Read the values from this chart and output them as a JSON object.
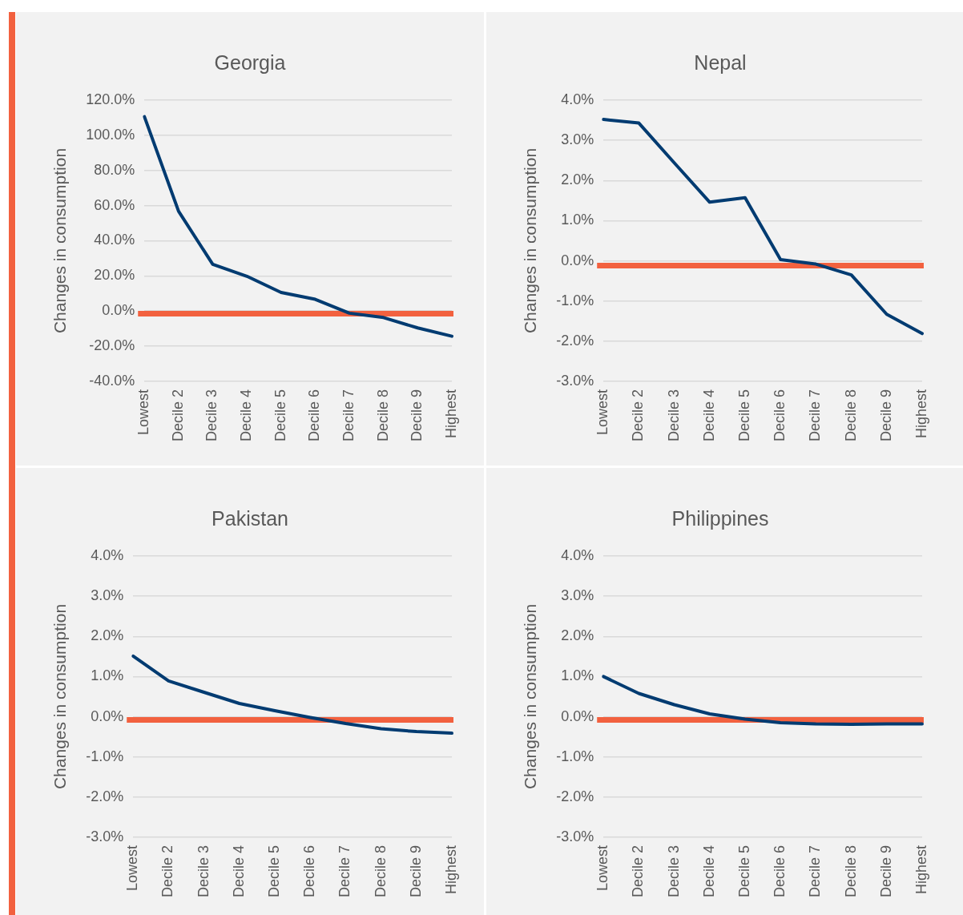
{
  "chart_data": [
    {
      "type": "line",
      "title": "Georgia",
      "ylabel": "Changes in consumption",
      "categories": [
        "Lowest",
        "Decile 2",
        "Decile 3",
        "Decile 4",
        "Decile 5",
        "Decile 6",
        "Decile 7",
        "Decile 8",
        "Decile 9",
        "Highest"
      ],
      "series": [
        {
          "color": "#003b71",
          "values": [
            110.6,
            56.8,
            26.6,
            19.8,
            10.6,
            6.7,
            -1.2,
            -3.7,
            -9.6,
            -14.3
          ]
        }
      ],
      "ylim": [
        -40,
        120
      ],
      "yticks": [
        {
          "value": -40,
          "label": "-40.0%"
        },
        {
          "value": -20,
          "label": "-20.0%"
        },
        {
          "value": 0,
          "label": "0.0%"
        },
        {
          "value": 20,
          "label": "20.0%"
        },
        {
          "value": 40,
          "label": "40.0%"
        },
        {
          "value": 60,
          "label": "60.0%"
        },
        {
          "value": 80,
          "label": "80.0%"
        },
        {
          "value": 100,
          "label": "100.0%"
        },
        {
          "value": 120,
          "label": "120.0%"
        }
      ],
      "grid": "y",
      "marker": "none",
      "ref_lines": [
        {
          "axis": "y",
          "value": -1.5,
          "color": "#f2613f"
        }
      ]
    },
    {
      "type": "line",
      "title": "Nepal",
      "ylabel": "Changes in consumption",
      "categories": [
        "Lowest",
        "Decile 2",
        "Decile 3",
        "Decile 4",
        "Decile 5",
        "Decile 6",
        "Decile 7",
        "Decile 8",
        "Decile 9",
        "Highest"
      ],
      "series": [
        {
          "color": "#003b71",
          "values": [
            3.52,
            3.43,
            2.44,
            1.46,
            1.57,
            0.03,
            -0.08,
            -0.35,
            -1.33,
            -1.81
          ]
        }
      ],
      "ylim": [
        -3,
        4
      ],
      "yticks": [
        {
          "value": -3,
          "label": "-3.0%"
        },
        {
          "value": -2,
          "label": "-2.0%"
        },
        {
          "value": -1,
          "label": "-1.0%"
        },
        {
          "value": 0,
          "label": "0.0%"
        },
        {
          "value": 1,
          "label": "1.0%"
        },
        {
          "value": 2,
          "label": "2.0%"
        },
        {
          "value": 3,
          "label": "3.0%"
        },
        {
          "value": 4,
          "label": "4.0%"
        }
      ],
      "grid": "y",
      "marker": "none",
      "ref_lines": [
        {
          "axis": "y",
          "value": -0.12,
          "color": "#f2613f"
        }
      ]
    },
    {
      "type": "line",
      "title": "Pakistan",
      "ylabel": "Changes in consumption",
      "categories": [
        "Lowest",
        "Decile 2",
        "Decile 3",
        "Decile 4",
        "Decile 5",
        "Decile 6",
        "Decile 7",
        "Decile 8",
        "Decile 9",
        "Highest"
      ],
      "series": [
        {
          "color": "#003b71",
          "values": [
            1.51,
            0.89,
            0.61,
            0.33,
            0.15,
            -0.02,
            -0.17,
            -0.3,
            -0.37,
            -0.41
          ]
        }
      ],
      "ylim": [
        -3,
        4
      ],
      "yticks": [
        {
          "value": -3,
          "label": "-3.0%"
        },
        {
          "value": -2,
          "label": "-2.0%"
        },
        {
          "value": -1,
          "label": "-1.0%"
        },
        {
          "value": 0,
          "label": "0.0%"
        },
        {
          "value": 1,
          "label": "1.0%"
        },
        {
          "value": 2,
          "label": "2.0%"
        },
        {
          "value": 3,
          "label": "3.0%"
        },
        {
          "value": 4,
          "label": "4.0%"
        }
      ],
      "grid": "y",
      "marker": "none",
      "ref_lines": [
        {
          "axis": "y",
          "value": -0.08,
          "color": "#f2613f"
        }
      ]
    },
    {
      "type": "line",
      "title": "Philippines",
      "ylabel": "Changes in consumption",
      "categories": [
        "Lowest",
        "Decile 2",
        "Decile 3",
        "Decile 4",
        "Decile 5",
        "Decile 6",
        "Decile 7",
        "Decile 8",
        "Decile 9",
        "Highest"
      ],
      "series": [
        {
          "color": "#003b71",
          "values": [
            1.0,
            0.58,
            0.3,
            0.07,
            -0.06,
            -0.15,
            -0.18,
            -0.19,
            -0.18,
            -0.18
          ]
        }
      ],
      "ylim": [
        -3,
        4
      ],
      "yticks": [
        {
          "value": -3,
          "label": "-3.0%"
        },
        {
          "value": -2,
          "label": "-2.0%"
        },
        {
          "value": -1,
          "label": "-1.0%"
        },
        {
          "value": 0,
          "label": "0.0%"
        },
        {
          "value": 1,
          "label": "1.0%"
        },
        {
          "value": 2,
          "label": "2.0%"
        },
        {
          "value": 3,
          "label": "3.0%"
        },
        {
          "value": 4,
          "label": "4.0%"
        }
      ],
      "grid": "y",
      "marker": "none",
      "ref_lines": [
        {
          "axis": "y",
          "value": -0.08,
          "color": "#f2613f"
        }
      ]
    }
  ]
}
